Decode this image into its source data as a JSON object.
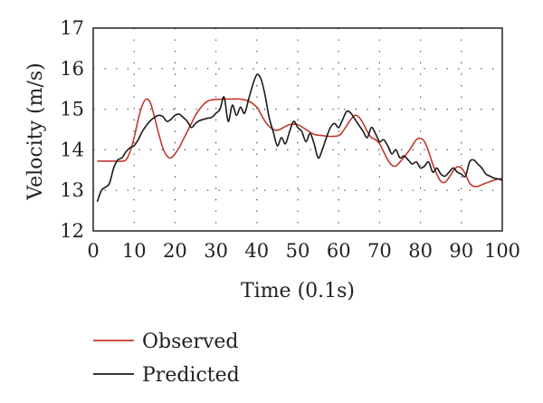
{
  "chart_data": {
    "type": "line",
    "xlabel": "Time (0.1s)",
    "ylabel": "Velocity (m/s)",
    "xlim": [
      0,
      100
    ],
    "ylim": [
      12,
      17
    ],
    "x_ticks": [
      "0",
      "10",
      "20",
      "30",
      "40",
      "50",
      "60",
      "70",
      "80",
      "90",
      "100"
    ],
    "y_ticks": [
      "12",
      "13",
      "14",
      "15",
      "16",
      "17"
    ],
    "grid": true,
    "legend_position": "bottom-left",
    "series": [
      {
        "name": "Observed",
        "color": "#c0392b",
        "x": [
          1,
          3,
          5,
          7,
          8,
          9,
          10,
          11,
          12,
          13,
          14,
          15,
          16,
          17,
          18,
          19,
          20,
          21,
          22,
          23,
          24,
          25,
          26,
          27,
          28,
          29,
          30,
          32,
          34,
          36,
          38,
          40,
          41,
          42,
          43,
          44,
          45,
          46,
          48,
          50,
          52,
          54,
          56,
          58,
          60,
          61,
          62,
          63,
          64,
          65,
          66,
          67,
          68,
          69,
          70,
          71,
          72,
          73,
          74,
          75,
          76,
          77,
          78,
          79,
          80,
          81,
          82,
          83,
          84,
          85,
          86,
          87,
          88,
          89,
          90,
          91,
          92,
          93,
          94,
          95,
          96,
          98,
          100
        ],
        "y": [
          13.72,
          13.72,
          13.72,
          13.72,
          13.75,
          13.95,
          14.3,
          14.75,
          15.1,
          15.25,
          15.15,
          14.8,
          14.4,
          14.05,
          13.85,
          13.8,
          13.9,
          14.05,
          14.25,
          14.45,
          14.65,
          14.85,
          15.0,
          15.12,
          15.2,
          15.23,
          15.24,
          15.25,
          15.25,
          15.25,
          15.2,
          15.05,
          14.88,
          14.7,
          14.58,
          14.5,
          14.48,
          14.52,
          14.62,
          14.62,
          14.5,
          14.38,
          14.35,
          14.33,
          14.35,
          14.45,
          14.6,
          14.75,
          14.85,
          14.8,
          14.65,
          14.45,
          14.3,
          14.25,
          14.15,
          13.95,
          13.75,
          13.62,
          13.6,
          13.7,
          13.82,
          13.95,
          14.1,
          14.25,
          14.28,
          14.2,
          13.95,
          13.65,
          13.4,
          13.22,
          13.2,
          13.32,
          13.48,
          13.58,
          13.55,
          13.4,
          13.18,
          13.1,
          13.1,
          13.14,
          13.18,
          13.25,
          13.3
        ]
      },
      {
        "name": "Predicted",
        "color": "#1a1a1a",
        "x": [
          1,
          2,
          3,
          4,
          5,
          6,
          7,
          8,
          9,
          10,
          11,
          12,
          13,
          14,
          15,
          16,
          17,
          18,
          19,
          20,
          21,
          22,
          23,
          24,
          25,
          26,
          27,
          28,
          29,
          30,
          31,
          32,
          33,
          34,
          35,
          36,
          37,
          38,
          39,
          40,
          41,
          42,
          43,
          44,
          45,
          46,
          47,
          48,
          49,
          50,
          51,
          52,
          53,
          54,
          55,
          56,
          57,
          58,
          59,
          60,
          61,
          62,
          63,
          64,
          65,
          66,
          67,
          68,
          69,
          70,
          71,
          72,
          73,
          74,
          75,
          76,
          77,
          78,
          79,
          80,
          81,
          82,
          83,
          84,
          85,
          86,
          87,
          88,
          89,
          90,
          91,
          92,
          93,
          94,
          95,
          96,
          97,
          98,
          99,
          100
        ],
        "y": [
          12.72,
          13.0,
          13.08,
          13.18,
          13.55,
          13.75,
          13.8,
          13.95,
          14.05,
          14.1,
          14.25,
          14.45,
          14.6,
          14.72,
          14.8,
          14.85,
          14.82,
          14.7,
          14.75,
          14.85,
          14.88,
          14.8,
          14.7,
          14.55,
          14.65,
          14.72,
          14.75,
          14.78,
          14.8,
          14.9,
          15.0,
          15.3,
          14.7,
          15.1,
          14.85,
          15.05,
          14.9,
          15.25,
          15.6,
          15.85,
          15.75,
          15.35,
          14.8,
          14.45,
          14.1,
          14.3,
          14.15,
          14.45,
          14.7,
          14.55,
          14.45,
          14.2,
          14.4,
          14.15,
          13.8,
          14.0,
          14.3,
          14.55,
          14.65,
          14.55,
          14.75,
          14.95,
          14.9,
          14.75,
          14.6,
          14.45,
          14.3,
          14.55,
          14.4,
          14.2,
          14.25,
          14.1,
          13.9,
          14.0,
          13.8,
          13.85,
          13.75,
          13.65,
          13.7,
          13.55,
          13.6,
          13.7,
          13.45,
          13.55,
          13.4,
          13.35,
          13.45,
          13.55,
          13.45,
          13.4,
          13.35,
          13.7,
          13.75,
          13.65,
          13.55,
          13.4,
          13.35,
          13.3,
          13.28,
          13.25
        ]
      }
    ]
  }
}
